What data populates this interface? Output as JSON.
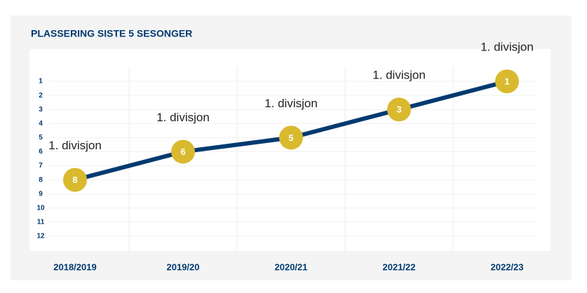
{
  "chart_data": {
    "type": "line",
    "title": "PLASSERING SISTE 5 SESONGER",
    "categories": [
      "2018/2019",
      "2019/20",
      "2020/21",
      "2021/22",
      "2022/23"
    ],
    "values": [
      8,
      6,
      5,
      3,
      1
    ],
    "annotations": [
      "1. divisjon",
      "1. divisjon",
      "1. divisjon",
      "1. divisjon",
      "1. divisjon"
    ],
    "color": "#003a70",
    "marker_color": "#d9b92e",
    "ylim": [
      0,
      13
    ],
    "y_inverted": true,
    "yticks": [
      1,
      2,
      3,
      4,
      5,
      6,
      7,
      8,
      9,
      10,
      11,
      12
    ],
    "grid": true
  }
}
